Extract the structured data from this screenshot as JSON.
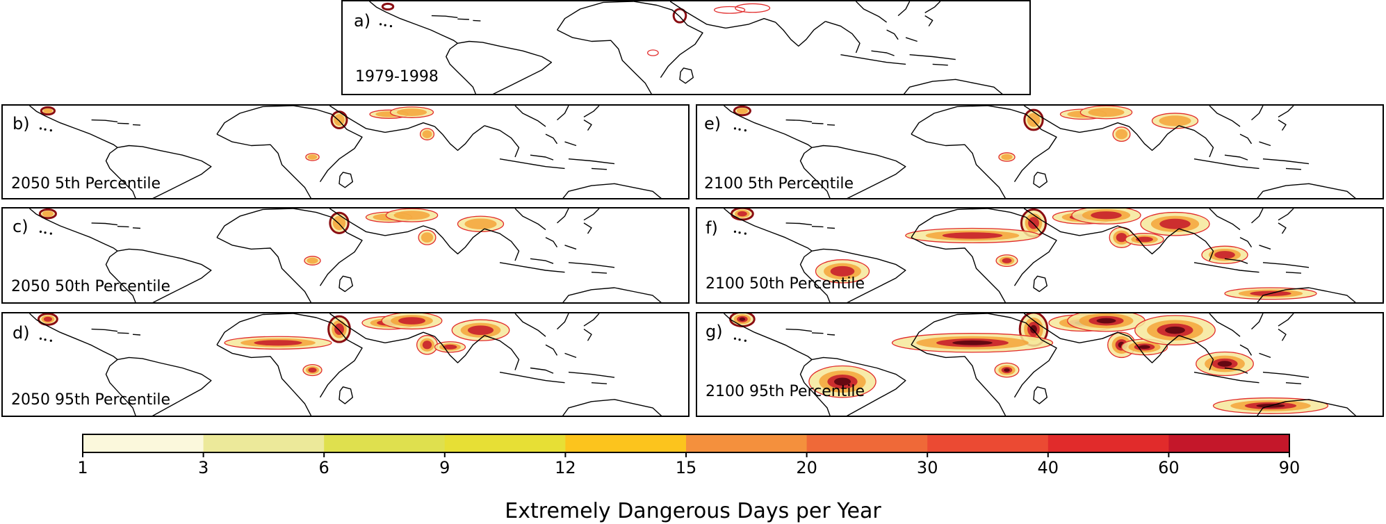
{
  "panels": [
    {
      "id": "a",
      "label": "a)",
      "title": "1979-1998",
      "intensity": 0
    },
    {
      "id": "b",
      "label": "b)",
      "title": "2050  5th Percentile",
      "intensity": 1
    },
    {
      "id": "c",
      "label": "c)",
      "title": "2050  50th Percentile",
      "intensity": 2
    },
    {
      "id": "d",
      "label": "d)",
      "title": "2050  95th Percentile",
      "intensity": 3
    },
    {
      "id": "e",
      "label": "e)",
      "title": "2100  5th Percentile",
      "intensity": 2
    },
    {
      "id": "f",
      "label": "f)",
      "title": "2100  50th Percentile",
      "intensity": 4
    },
    {
      "id": "g",
      "label": "g)",
      "title": "2100  95th Percentile",
      "intensity": 5
    }
  ],
  "colorbar": {
    "label": "Extremely Dangerous Days per Year",
    "ticks": [
      "1",
      "3",
      "6",
      "9",
      "12",
      "15",
      "20",
      "30",
      "40",
      "60",
      "90"
    ],
    "colors": [
      "#fbf8dc",
      "#ece99a",
      "#dfe04e",
      "#e7df35",
      "#fcc41d",
      "#f4903d",
      "#ef6938",
      "#eb4a33",
      "#e12b2b",
      "#c4172a",
      "#5a0410"
    ]
  }
}
